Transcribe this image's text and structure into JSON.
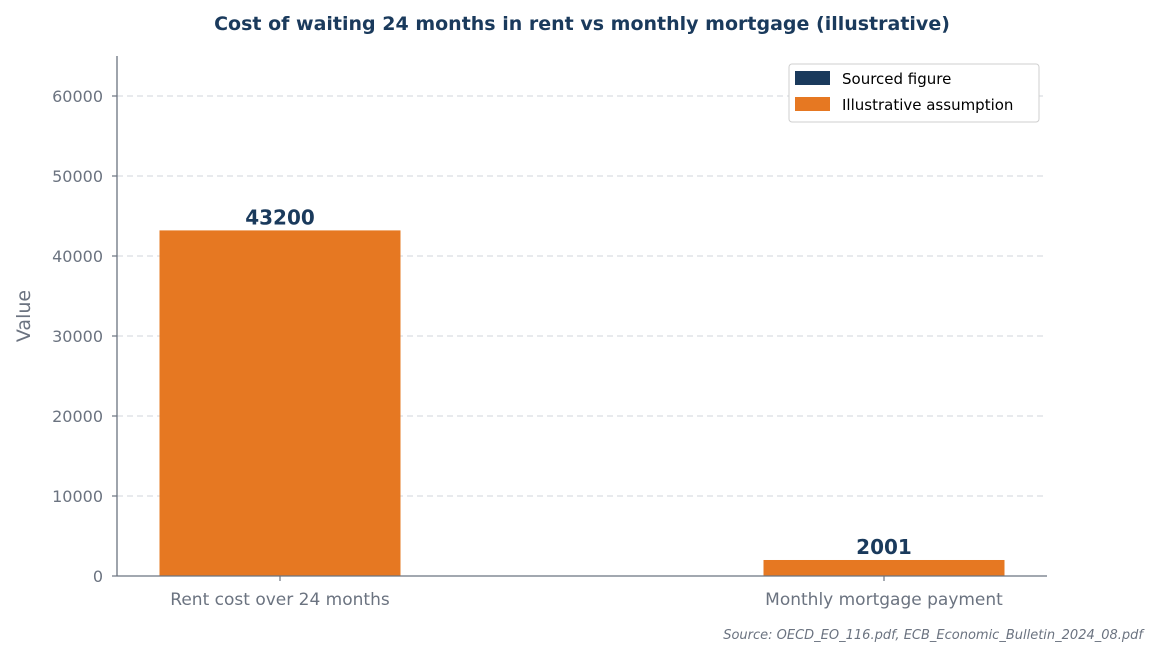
{
  "chart_data": {
    "type": "bar",
    "title": "Cost of waiting 24 months in rent vs monthly mortgage (illustrative)",
    "ylabel": "Value",
    "xlabel": "",
    "categories": [
      "Rent cost over 24 months",
      "Monthly mortgage payment"
    ],
    "values": [
      43200,
      2001
    ],
    "value_labels": [
      "43200",
      "2001"
    ],
    "bar_kind": [
      "illustrative",
      "illustrative"
    ],
    "ylim": [
      0,
      65000
    ],
    "yticks": [
      0,
      10000,
      20000,
      30000,
      40000,
      50000,
      60000
    ],
    "ytick_labels": [
      "0",
      "10000",
      "20000",
      "30000",
      "40000",
      "50000",
      "60000"
    ],
    "grid": "horizontal dashed",
    "legend": {
      "position": "top-right",
      "items": [
        {
          "label": "Sourced figure",
          "kind": "sourced",
          "color": "#1a3a5c"
        },
        {
          "label": "Illustrative assumption",
          "kind": "illustrative",
          "color": "#e67822"
        }
      ]
    },
    "source_note": "Source: OECD_EO_116.pdf, ECB_Economic_Bulletin_2024_08.pdf"
  }
}
